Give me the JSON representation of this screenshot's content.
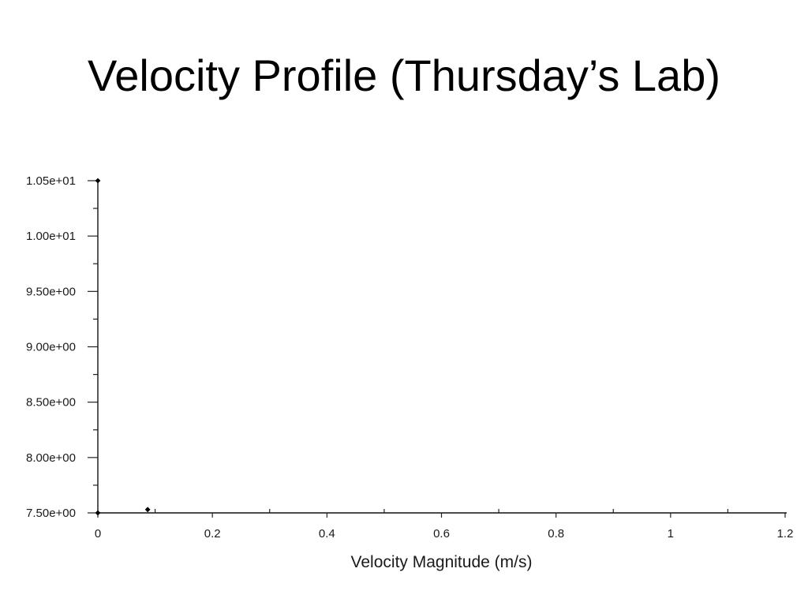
{
  "chart_data": {
    "type": "scatter",
    "title": "Velocity Profile (Thursday’s Lab)",
    "xlabel": "Velocity Magnitude (m/s)",
    "xlim": [
      0,
      1.2
    ],
    "ylim": [
      7.5,
      10.5
    ],
    "x_ticks": [
      "0",
      "0.2",
      "0.4",
      "0.6",
      "0.8",
      "1",
      "1.2"
    ],
    "y_ticks": [
      "1.05e+01",
      "1.00e+01",
      "9.50e+00",
      "9.00e+00",
      "8.50e+00",
      "8.00e+00",
      "7.50e+00"
    ],
    "minor_tick_step": {
      "x": 0.1,
      "y": 0.25
    },
    "grid": false,
    "legend": false,
    "series": [
      {
        "color": "#000000",
        "x": [
          0,
          0.087,
          0
        ],
        "y": [
          10.5,
          7.53,
          7.5
        ]
      }
    ]
  }
}
